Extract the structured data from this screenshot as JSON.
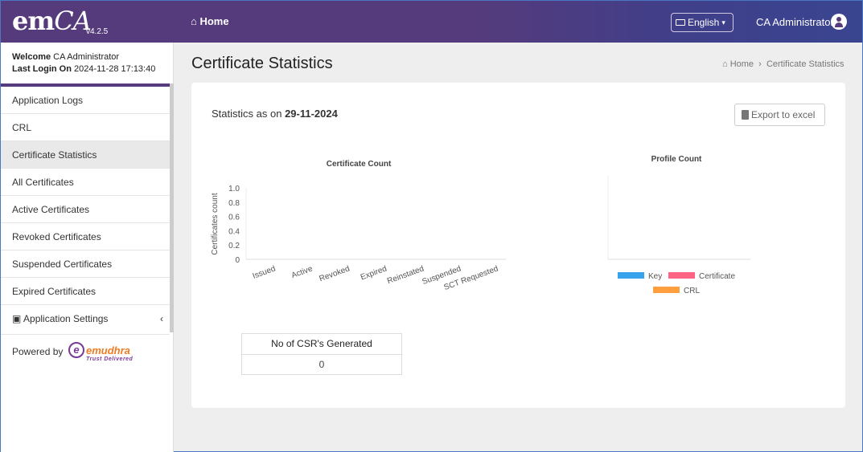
{
  "header": {
    "logo": "emCA",
    "version": "v4.2.5",
    "home": "Home",
    "language": "English",
    "user": "CA Administrator"
  },
  "sidebar": {
    "welcome_label": "Welcome",
    "welcome_user": "CA Administrator",
    "last_login_label": "Last Login On",
    "last_login": "2024-11-28 17:13:40",
    "items": [
      {
        "label": "Application Logs"
      },
      {
        "label": "CRL"
      },
      {
        "label": "Certificate Statistics"
      },
      {
        "label": "All Certificates"
      },
      {
        "label": "Active Certificates"
      },
      {
        "label": "Revoked Certificates"
      },
      {
        "label": "Suspended Certificates"
      },
      {
        "label": "Expired Certificates"
      },
      {
        "label": "Application Settings"
      }
    ],
    "powered_by": "Powered by",
    "brand": "emudhra",
    "brand_tagline": "Trust Delivered"
  },
  "page": {
    "title": "Certificate Statistics",
    "breadcrumb": [
      "Home",
      "Certificate Statistics"
    ],
    "stats_label": "Statistics as on",
    "stats_date": "29-11-2024",
    "export": "Export to excel",
    "csr": {
      "header": "No of CSR's Generated",
      "value": "0"
    }
  },
  "chart_data": [
    {
      "type": "bar",
      "title": "Certificate Count",
      "ylabel": "Certificates count",
      "xlabel": "",
      "categories": [
        "Issued",
        "Active",
        "Revoked",
        "Expired",
        "Reinstated",
        "Suspended",
        "SCT Requested"
      ],
      "values": [
        0,
        0,
        0,
        0,
        0,
        0,
        0
      ],
      "ylim": [
        0,
        1.0
      ],
      "yticks": [
        "0",
        "0.2",
        "0.4",
        "0.6",
        "0.8",
        "1.0"
      ]
    },
    {
      "type": "pie",
      "title": "Profile Count",
      "legend": [
        {
          "label": "Key",
          "color": "#36a2eb"
        },
        {
          "label": "Certificate",
          "color": "#ff6384"
        },
        {
          "label": "CRL",
          "color": "#ff9f40"
        }
      ],
      "values": [
        0,
        0,
        0
      ]
    }
  ]
}
